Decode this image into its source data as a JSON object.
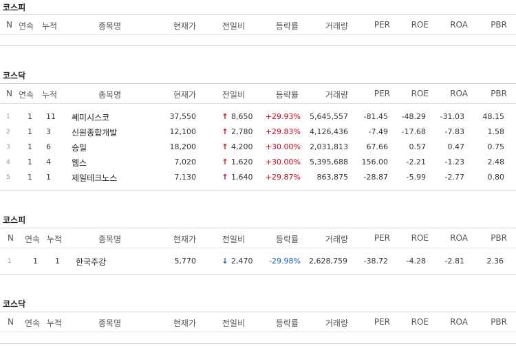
{
  "columns": [
    "N",
    "연속",
    "누적",
    "종목명",
    "현재가",
    "전일비",
    "등락률",
    "거래량",
    "PER",
    "ROE",
    "ROA",
    "PBR"
  ],
  "sections": [
    {
      "title": "코스피",
      "rows": []
    },
    {
      "title": "코스닥",
      "rows": [
        {
          "n": "1",
          "cont": "1",
          "cum": "11",
          "name": "쎄미시스코",
          "price": "37,550",
          "dir": "up",
          "diff": "8,650",
          "rate": "+29.93%",
          "vol": "5,645,557",
          "per": "-81.45",
          "roe": "-48.29",
          "roa": "-31.03",
          "pbr": "48.15"
        },
        {
          "n": "2",
          "cont": "1",
          "cum": "3",
          "name": "신원종합개발",
          "price": "12,100",
          "dir": "up",
          "diff": "2,780",
          "rate": "+29.83%",
          "vol": "4,126,436",
          "per": "-7.49",
          "roe": "-17.68",
          "roa": "-7.83",
          "pbr": "1.58"
        },
        {
          "n": "3",
          "cont": "1",
          "cum": "6",
          "name": "승일",
          "price": "18,200",
          "dir": "up",
          "diff": "4,200",
          "rate": "+30.00%",
          "vol": "2,031,813",
          "per": "67.66",
          "roe": "0.57",
          "roa": "0.47",
          "pbr": "0.75"
        },
        {
          "n": "4",
          "cont": "1",
          "cum": "4",
          "name": "웹스",
          "price": "7,020",
          "dir": "up",
          "diff": "1,620",
          "rate": "+30.00%",
          "vol": "5,395,688",
          "per": "156.00",
          "roe": "-2.21",
          "roa": "-1.23",
          "pbr": "2.48"
        },
        {
          "n": "5",
          "cont": "1",
          "cum": "1",
          "name": "제일테크노스",
          "price": "7,130",
          "dir": "up",
          "diff": "1,640",
          "rate": "+29.87%",
          "vol": "863,875",
          "per": "-28.87",
          "roe": "-5.99",
          "roa": "-2.77",
          "pbr": "0.80"
        }
      ]
    },
    {
      "title": "코스피",
      "rows": [
        {
          "n": "1",
          "cont": "1",
          "cum": "1",
          "name": "한국주강",
          "price": "5,770",
          "dir": "down",
          "diff": "2,470",
          "rate": "-29.98%",
          "vol": "2,628,759",
          "per": "-38.72",
          "roe": "-4.28",
          "roa": "-2.81",
          "pbr": "2.36"
        }
      ]
    },
    {
      "title": "코스닥",
      "rows": []
    }
  ],
  "icons": {
    "up": "up-arrow-icon",
    "down": "down-arrow-icon"
  },
  "colors": {
    "up": "#d0021b",
    "down": "#1a5fc8"
  }
}
